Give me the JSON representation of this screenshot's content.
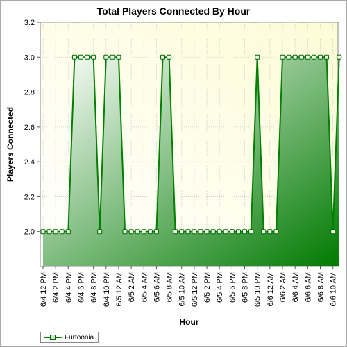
{
  "chart_data": {
    "type": "area",
    "title": "Total Players Connected By Hour",
    "xlabel": "Hour",
    "ylabel": "Players Connected",
    "ylim": [
      1.8,
      3.2
    ],
    "yticks": [
      "2.0",
      "2.2",
      "2.4",
      "2.6",
      "2.8",
      "3.0",
      "3.2"
    ],
    "xtick_labels": [
      "6/4 12 PM",
      "6/4 2 PM",
      "6/4 4 PM",
      "6/4 6 PM",
      "6/4 8 PM",
      "6/4 10 PM",
      "6/5 12 AM",
      "6/5 2 AM",
      "6/5 4 AM",
      "6/5 6 AM",
      "6/5 8 AM",
      "6/5 10 AM",
      "6/5 12 PM",
      "6/5 2 PM",
      "6/5 4 PM",
      "6/5 6 PM",
      "6/5 8 PM",
      "6/5 10 PM",
      "6/6 12 AM",
      "6/6 2 AM",
      "6/6 4 AM",
      "6/6 6 AM",
      "6/6 8 AM",
      "6/6 10 AM"
    ],
    "grid": true,
    "legend_position": "bottom-left",
    "series": [
      {
        "name": "Furtoonia",
        "color": "#008000",
        "values": [
          2,
          2,
          2,
          2,
          2,
          3,
          3,
          3,
          3,
          2,
          3,
          3,
          3,
          2,
          2,
          2,
          2,
          2,
          2,
          3,
          3,
          2,
          2,
          2,
          2,
          2,
          2,
          2,
          2,
          2,
          2,
          2,
          2,
          2,
          3,
          2,
          2,
          2,
          3,
          3,
          3,
          3,
          3,
          3,
          3,
          3,
          2,
          3
        ]
      }
    ]
  }
}
